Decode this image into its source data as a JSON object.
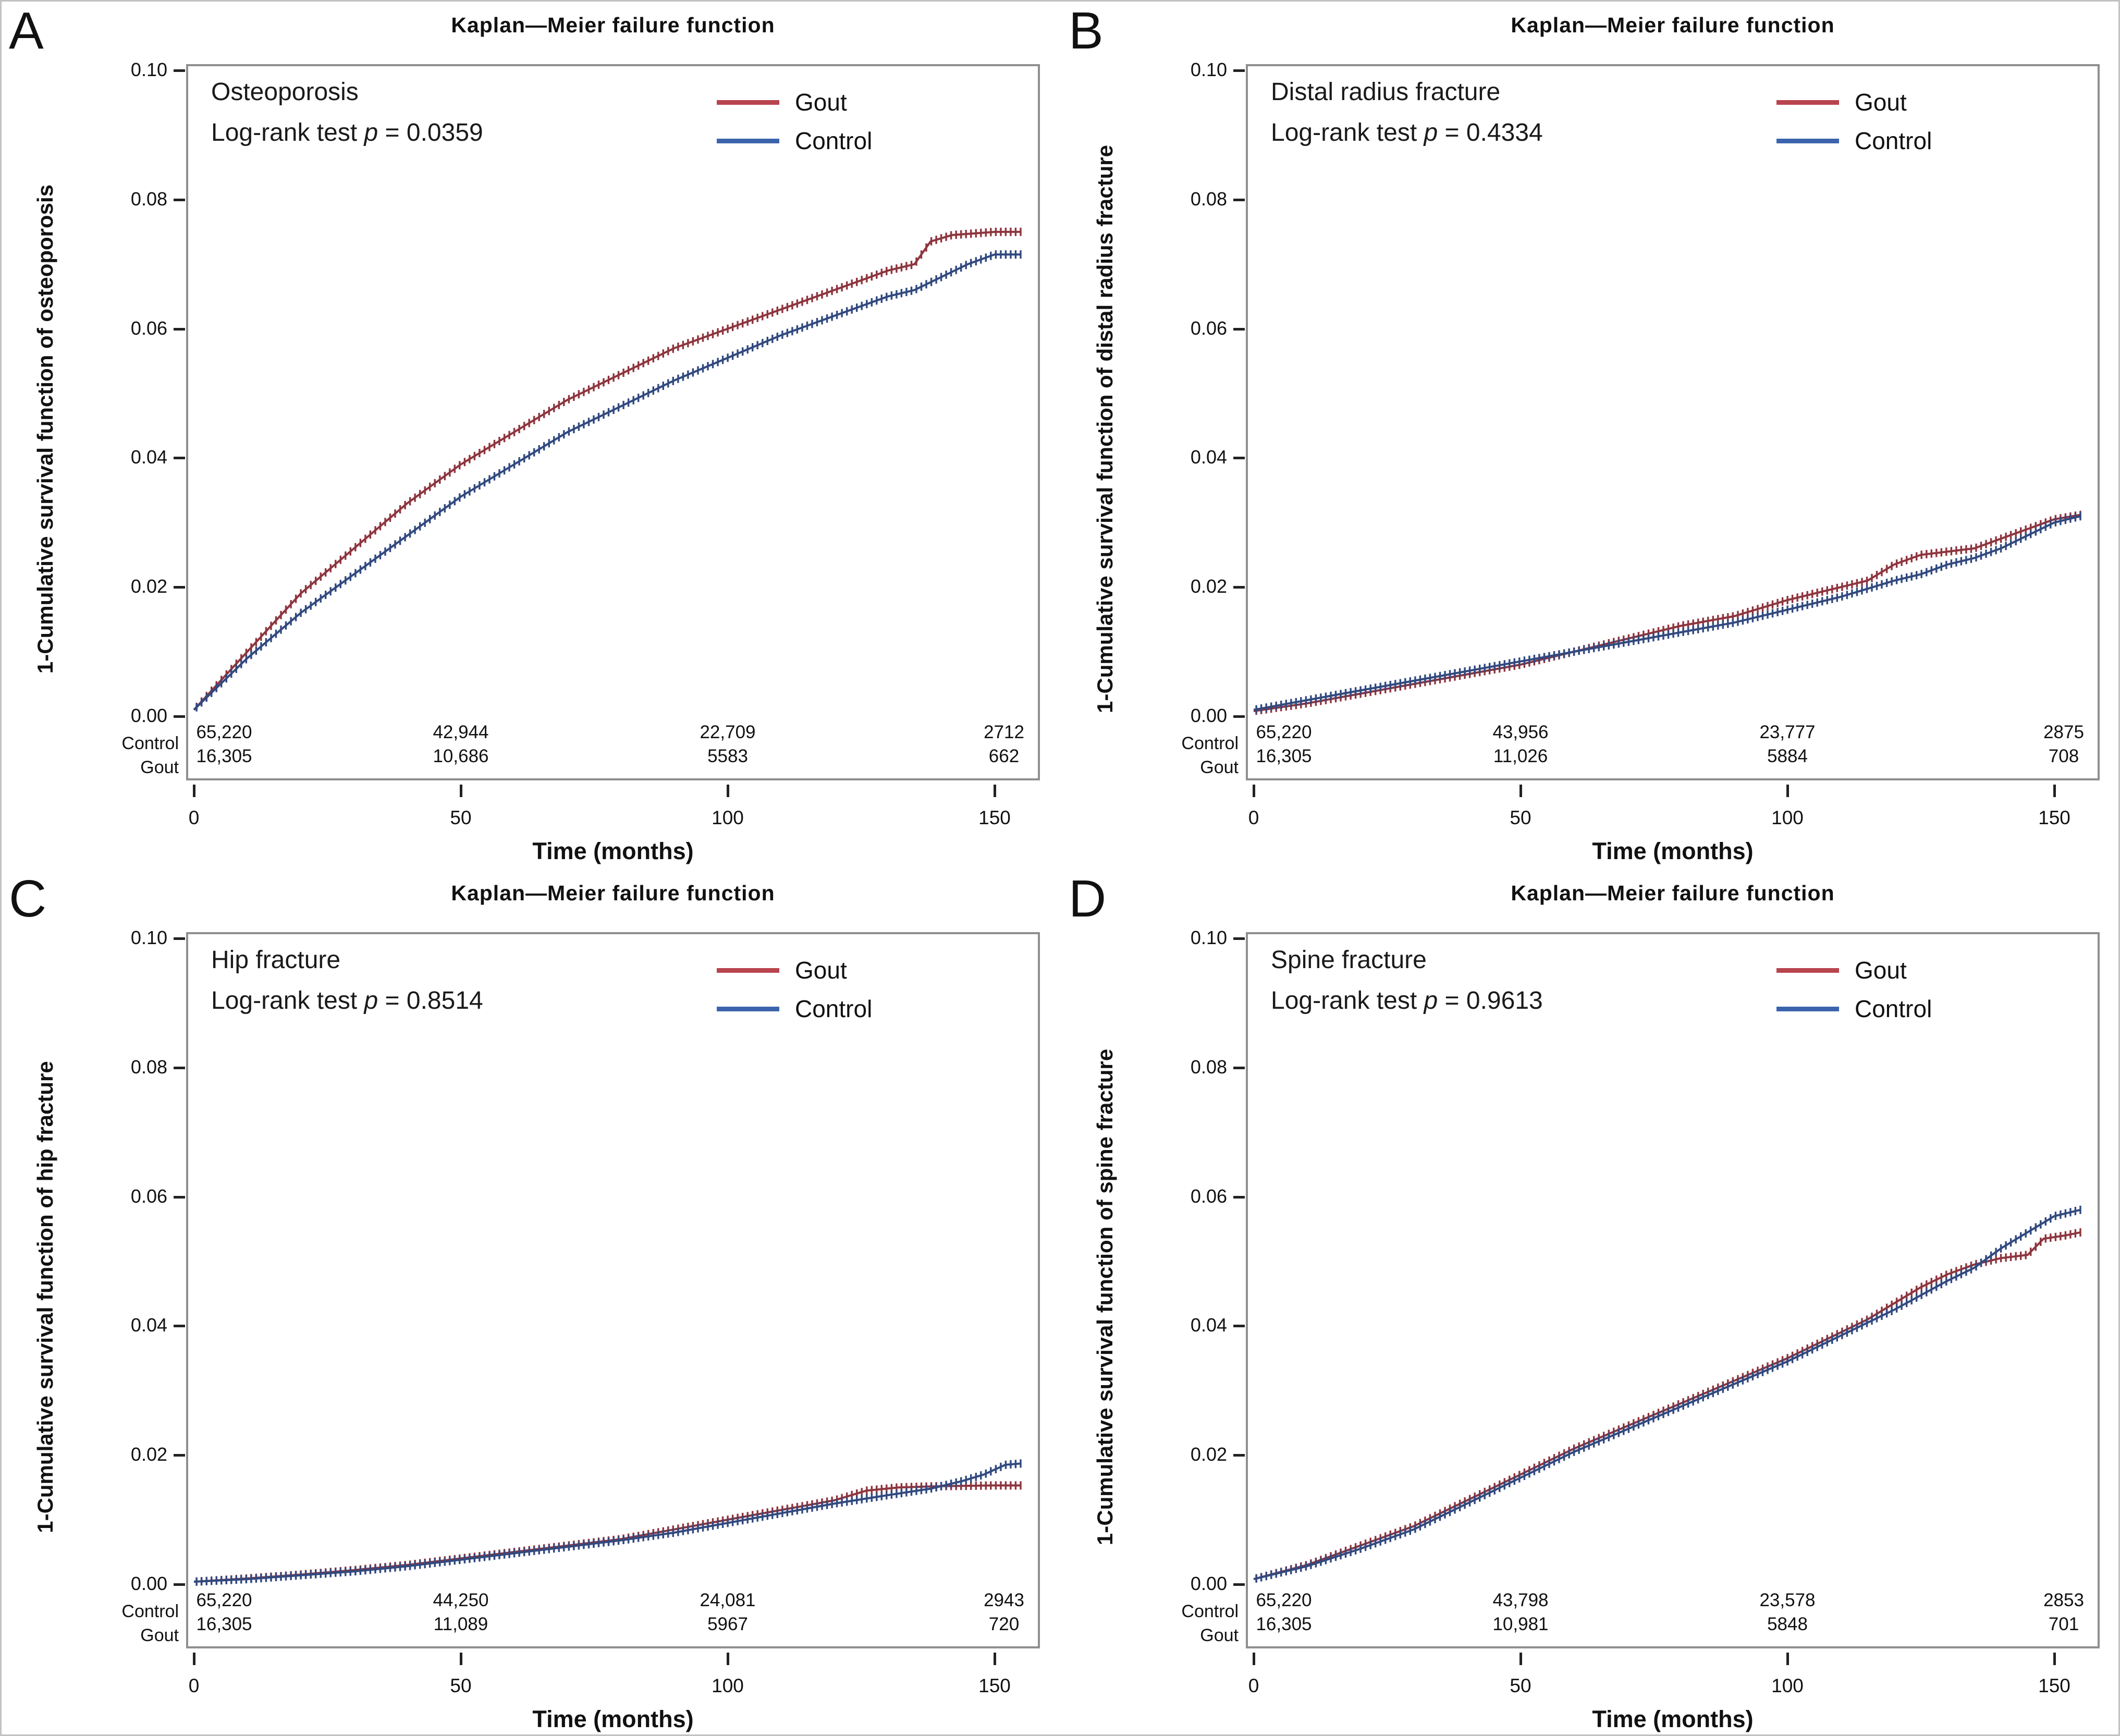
{
  "figure": {
    "colors": {
      "gout_curve": "#8d353e",
      "control_curve": "#31497f",
      "gout_legend": "#b8444e",
      "control_legend": "#3c64ad",
      "axis": "#222222",
      "plot_border": "#8f8f8f"
    },
    "panels": [
      {
        "letter": "A",
        "title": "Kaplan—Meier failure function",
        "disease": "Osteoporosis",
        "logrank_prefix": "Log-rank test ",
        "p_symbol": "p",
        "p_value": " = 0.0359",
        "ylabel": "1-Cumulative survival function of osteoporosis",
        "xlabel": "Time (months)",
        "yticks": [
          "0.10",
          "0.08",
          "0.06",
          "0.04",
          "0.02",
          "0.00"
        ],
        "xticks": [
          "0",
          "50",
          "100",
          "150"
        ],
        "legend": [
          {
            "label": "Gout"
          },
          {
            "label": "Control"
          }
        ],
        "at_risk": {
          "row_labels": [
            "Control",
            "Gout"
          ],
          "control": [
            "65,220",
            "42,944",
            "22,709",
            "2712"
          ],
          "gout": [
            "16,305",
            "10,686",
            "5583",
            "662"
          ]
        }
      },
      {
        "letter": "B",
        "title": "Kaplan—Meier failure function",
        "disease": "Distal radius fracture",
        "logrank_prefix": "Log-rank test ",
        "p_symbol": "p",
        "p_value": " = 0.4334",
        "ylabel": "1-Cumulative survival function of distal radius fracture",
        "xlabel": "Time (months)",
        "yticks": [
          "0.10",
          "0.08",
          "0.06",
          "0.04",
          "0.02",
          "0.00"
        ],
        "xticks": [
          "0",
          "50",
          "100",
          "150"
        ],
        "legend": [
          {
            "label": "Gout"
          },
          {
            "label": "Control"
          }
        ],
        "at_risk": {
          "row_labels": [
            "Control",
            "Gout"
          ],
          "control": [
            "65,220",
            "43,956",
            "23,777",
            "2875"
          ],
          "gout": [
            "16,305",
            "11,026",
            "5884",
            "708"
          ]
        }
      },
      {
        "letter": "C",
        "title": "Kaplan—Meier failure function",
        "disease": "Hip fracture",
        "logrank_prefix": "Log-rank test ",
        "p_symbol": "p",
        "p_value": " = 0.8514",
        "ylabel": "1-Cumulative survival function of hip fracture",
        "xlabel": "Time (months)",
        "yticks": [
          "0.10",
          "0.08",
          "0.06",
          "0.04",
          "0.02",
          "0.00"
        ],
        "xticks": [
          "0",
          "50",
          "100",
          "150"
        ],
        "legend": [
          {
            "label": "Gout"
          },
          {
            "label": "Control"
          }
        ],
        "at_risk": {
          "row_labels": [
            "Control",
            "Gout"
          ],
          "control": [
            "65,220",
            "44,250",
            "24,081",
            "2943"
          ],
          "gout": [
            "16,305",
            "11,089",
            "5967",
            "720"
          ]
        }
      },
      {
        "letter": "D",
        "title": "Kaplan—Meier failure function",
        "disease": "Spine fracture",
        "logrank_prefix": "Log-rank test ",
        "p_symbol": "p",
        "p_value": " = 0.9613",
        "ylabel": "1-Cumulative survival function of spine fracture",
        "xlabel": "Time (months)",
        "yticks": [
          "0.10",
          "0.08",
          "0.06",
          "0.04",
          "0.02",
          "0.00"
        ],
        "xticks": [
          "0",
          "50",
          "100",
          "150"
        ],
        "legend": [
          {
            "label": "Gout"
          },
          {
            "label": "Control"
          }
        ],
        "at_risk": {
          "row_labels": [
            "Control",
            "Gout"
          ],
          "control": [
            "65,220",
            "43,798",
            "23,578",
            "2853"
          ],
          "gout": [
            "16,305",
            "10,981",
            "5848",
            "701"
          ]
        }
      }
    ]
  },
  "chart_data": [
    {
      "type": "line",
      "title": "Kaplan—Meier failure function",
      "subtitle": "Osteoporosis, Log-rank test p = 0.0359",
      "xlabel": "Time (months)",
      "ylabel": "1-Cumulative survival function of osteoporosis",
      "xlim": [
        0,
        160
      ],
      "ylim": [
        0,
        0.1
      ],
      "xticks": [
        0,
        50,
        100,
        150
      ],
      "yticks": [
        0.0,
        0.02,
        0.04,
        0.06,
        0.08,
        0.1
      ],
      "grid": false,
      "legend_position": "top-right",
      "series": [
        {
          "name": "Gout",
          "color": "#8d353e",
          "legend_color": "#b8444e",
          "x": [
            0,
            10,
            20,
            30,
            40,
            50,
            60,
            70,
            80,
            90,
            100,
            110,
            120,
            125,
            130,
            135,
            138,
            142,
            150,
            155
          ],
          "y": [
            0.001,
            0.01,
            0.019,
            0.026,
            0.033,
            0.039,
            0.044,
            0.049,
            0.053,
            0.057,
            0.06,
            0.063,
            0.066,
            0.0675,
            0.069,
            0.07,
            0.0735,
            0.0745,
            0.075,
            0.075
          ]
        },
        {
          "name": "Control",
          "color": "#31497f",
          "legend_color": "#3c64ad",
          "x": [
            0,
            10,
            20,
            30,
            40,
            50,
            60,
            70,
            80,
            90,
            100,
            110,
            120,
            130,
            135,
            140,
            145,
            150,
            155
          ],
          "y": [
            0.001,
            0.009,
            0.016,
            0.022,
            0.028,
            0.034,
            0.039,
            0.044,
            0.048,
            0.052,
            0.0555,
            0.059,
            0.062,
            0.065,
            0.066,
            0.068,
            0.07,
            0.0715,
            0.0715
          ]
        }
      ],
      "number_at_risk": {
        "times": [
          0,
          50,
          100,
          150
        ],
        "Control": [
          65220,
          42944,
          22709,
          2712
        ],
        "Gout": [
          16305,
          10686,
          5583,
          662
        ]
      }
    },
    {
      "type": "line",
      "title": "Kaplan—Meier failure function",
      "subtitle": "Distal radius fracture, Log-rank test p = 0.4334",
      "xlabel": "Time (months)",
      "ylabel": "1-Cumulative survival function of distal radius fracture",
      "xlim": [
        0,
        160
      ],
      "ylim": [
        0,
        0.1
      ],
      "xticks": [
        0,
        50,
        100,
        150
      ],
      "yticks": [
        0.0,
        0.02,
        0.04,
        0.06,
        0.08,
        0.1
      ],
      "grid": false,
      "legend_position": "top-right",
      "series": [
        {
          "name": "Gout",
          "color": "#8d353e",
          "legend_color": "#b8444e",
          "x": [
            0,
            10,
            20,
            30,
            40,
            50,
            60,
            70,
            80,
            90,
            100,
            110,
            115,
            120,
            125,
            130,
            135,
            140,
            145,
            150,
            155
          ],
          "y": [
            0.0008,
            0.002,
            0.0035,
            0.005,
            0.0065,
            0.008,
            0.01,
            0.012,
            0.014,
            0.0155,
            0.018,
            0.02,
            0.021,
            0.0235,
            0.025,
            0.0255,
            0.026,
            0.0275,
            0.029,
            0.0305,
            0.0312
          ]
        },
        {
          "name": "Control",
          "color": "#31497f",
          "legend_color": "#3c64ad",
          "x": [
            0,
            10,
            20,
            30,
            40,
            50,
            60,
            70,
            80,
            90,
            100,
            110,
            120,
            125,
            130,
            135,
            140,
            145,
            150,
            155
          ],
          "y": [
            0.001,
            0.0025,
            0.004,
            0.0055,
            0.007,
            0.0085,
            0.01,
            0.0115,
            0.013,
            0.0145,
            0.0165,
            0.0185,
            0.021,
            0.022,
            0.0235,
            0.0245,
            0.026,
            0.028,
            0.03,
            0.031
          ]
        }
      ],
      "number_at_risk": {
        "times": [
          0,
          50,
          100,
          150
        ],
        "Control": [
          65220,
          43956,
          23777,
          2875
        ],
        "Gout": [
          16305,
          11026,
          5884,
          708
        ]
      }
    },
    {
      "type": "line",
      "title": "Kaplan—Meier failure function",
      "subtitle": "Hip fracture, Log-rank test p = 0.8514",
      "xlabel": "Time (months)",
      "ylabel": "1-Cumulative survival function of hip fracture",
      "xlim": [
        0,
        160
      ],
      "ylim": [
        0,
        0.1
      ],
      "xticks": [
        0,
        50,
        100,
        150
      ],
      "yticks": [
        0.0,
        0.02,
        0.04,
        0.06,
        0.08,
        0.1
      ],
      "grid": false,
      "legend_position": "top-right",
      "series": [
        {
          "name": "Gout",
          "color": "#8d353e",
          "legend_color": "#b8444e",
          "x": [
            0,
            10,
            20,
            30,
            40,
            50,
            60,
            70,
            80,
            90,
            100,
            110,
            120,
            126,
            132,
            140,
            150,
            155
          ],
          "y": [
            0.0004,
            0.0009,
            0.0015,
            0.0022,
            0.003,
            0.004,
            0.005,
            0.006,
            0.007,
            0.0085,
            0.01,
            0.0115,
            0.013,
            0.0145,
            0.015,
            0.0152,
            0.0153,
            0.0153
          ]
        },
        {
          "name": "Control",
          "color": "#31497f",
          "legend_color": "#3c64ad",
          "x": [
            0,
            10,
            20,
            30,
            40,
            50,
            60,
            70,
            80,
            90,
            100,
            110,
            120,
            130,
            138,
            144,
            148,
            152,
            155
          ],
          "y": [
            0.0004,
            0.0008,
            0.0014,
            0.002,
            0.0028,
            0.0038,
            0.0048,
            0.0058,
            0.0068,
            0.008,
            0.0095,
            0.011,
            0.0125,
            0.0138,
            0.0148,
            0.016,
            0.017,
            0.0185,
            0.0187
          ]
        }
      ],
      "number_at_risk": {
        "times": [
          0,
          50,
          100,
          150
        ],
        "Control": [
          65220,
          44250,
          24081,
          2943
        ],
        "Gout": [
          16305,
          11089,
          5967,
          720
        ]
      }
    },
    {
      "type": "line",
      "title": "Kaplan—Meier failure function",
      "subtitle": "Spine fracture, Log-rank test p = 0.9613",
      "xlabel": "Time (months)",
      "ylabel": "1-Cumulative survival function of spine fracture",
      "xlim": [
        0,
        160
      ],
      "ylim": [
        0,
        0.1
      ],
      "xticks": [
        0,
        50,
        100,
        150
      ],
      "yticks": [
        0.0,
        0.02,
        0.04,
        0.06,
        0.08,
        0.1
      ],
      "grid": false,
      "legend_position": "top-right",
      "series": [
        {
          "name": "Gout",
          "color": "#8d353e",
          "legend_color": "#b8444e",
          "x": [
            0,
            10,
            20,
            30,
            40,
            50,
            60,
            70,
            80,
            90,
            100,
            110,
            115,
            120,
            125,
            130,
            135,
            140,
            145,
            148,
            152,
            155
          ],
          "y": [
            0.0008,
            0.003,
            0.006,
            0.009,
            0.013,
            0.017,
            0.021,
            0.0245,
            0.028,
            0.0315,
            0.035,
            0.039,
            0.041,
            0.0435,
            0.046,
            0.048,
            0.0495,
            0.0505,
            0.051,
            0.0535,
            0.054,
            0.0545
          ]
        },
        {
          "name": "Control",
          "color": "#31497f",
          "legend_color": "#3c64ad",
          "x": [
            0,
            10,
            20,
            30,
            40,
            50,
            60,
            70,
            80,
            90,
            100,
            110,
            120,
            130,
            135,
            140,
            145,
            150,
            155
          ],
          "y": [
            0.0008,
            0.0028,
            0.0055,
            0.0085,
            0.0125,
            0.0165,
            0.0205,
            0.024,
            0.0275,
            0.031,
            0.0345,
            0.0385,
            0.0425,
            0.047,
            0.049,
            0.052,
            0.0545,
            0.057,
            0.058
          ]
        }
      ],
      "number_at_risk": {
        "times": [
          0,
          50,
          100,
          150
        ],
        "Control": [
          65220,
          43798,
          23578,
          2853
        ],
        "Gout": [
          16305,
          10981,
          5848,
          701
        ]
      }
    }
  ]
}
